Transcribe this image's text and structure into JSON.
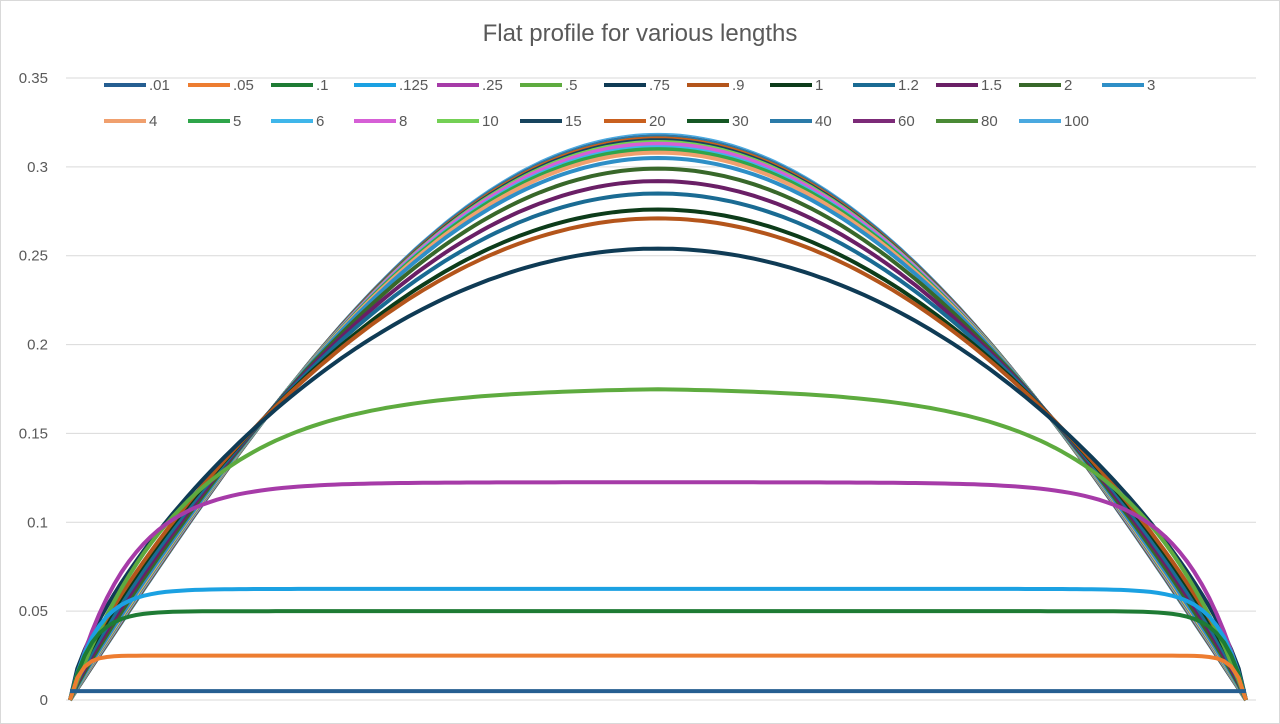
{
  "chart_data": {
    "type": "line",
    "title": "Flat profile for various lengths",
    "xlabel": "",
    "ylabel": "",
    "ylim": [
      0,
      0.35
    ],
    "y_ticks": [
      "0",
      "0.05",
      "0.1",
      "0.15",
      "0.2",
      "0.25",
      "0.3",
      "0.35"
    ],
    "grid": true,
    "legend_position": "top",
    "x_range": [
      0,
      1
    ],
    "series": [
      {
        "name": ".01",
        "color": "#255e91",
        "plateau": 0.005,
        "edge_width": 0.002
      },
      {
        "name": ".05",
        "color": "#ed7d31",
        "plateau": 0.025,
        "edge_width": 0.02
      },
      {
        "name": ".1",
        "color": "#1e7b34",
        "plateau": 0.05,
        "edge_width": 0.04
      },
      {
        "name": ".125",
        "color": "#1ba1e2",
        "plateau": 0.0625,
        "edge_width": 0.05
      },
      {
        "name": ".25",
        "color": "#a63ba8",
        "plateau": 0.1225,
        "edge_width": 0.11
      },
      {
        "name": ".5",
        "color": "#5eab3f",
        "plateau": 0.176,
        "edge_width": 0.22
      },
      {
        "name": ".75",
        "color": "#0f3b55",
        "plateau": 0.254,
        "peak_shape": "sine"
      },
      {
        "name": ".9",
        "color": "#b4551b",
        "plateau": 0.271,
        "peak_shape": "sine"
      },
      {
        "name": "1",
        "color": "#0d3c1a",
        "plateau": 0.276,
        "peak_shape": "sine"
      },
      {
        "name": "1.2",
        "color": "#1a6b93",
        "plateau": 0.285,
        "peak_shape": "sine"
      },
      {
        "name": "1.5",
        "color": "#6a1f66",
        "plateau": 0.292,
        "peak_shape": "sine"
      },
      {
        "name": "2",
        "color": "#38682a",
        "plateau": 0.299,
        "peak_shape": "sine"
      },
      {
        "name": "3",
        "color": "#2e8fc7",
        "plateau": 0.305,
        "peak_shape": "sine"
      },
      {
        "name": "4",
        "color": "#f0a06e",
        "plateau": 0.308,
        "peak_shape": "sine"
      },
      {
        "name": "5",
        "color": "#2fa54a",
        "plateau": 0.31,
        "peak_shape": "sine"
      },
      {
        "name": "6",
        "color": "#3fb6ea",
        "plateau": 0.311,
        "peak_shape": "sine"
      },
      {
        "name": "8",
        "color": "#d65fd6",
        "plateau": 0.313,
        "peak_shape": "sine"
      },
      {
        "name": "10",
        "color": "#74d055",
        "plateau": 0.314,
        "peak_shape": "sine"
      },
      {
        "name": "15",
        "color": "#17445e",
        "plateau": 0.315,
        "peak_shape": "sine"
      },
      {
        "name": "20",
        "color": "#c9601f",
        "plateau": 0.316,
        "peak_shape": "sine"
      },
      {
        "name": "30",
        "color": "#155724",
        "plateau": 0.316,
        "peak_shape": "sine"
      },
      {
        "name": "40",
        "color": "#2a7aa8",
        "plateau": 0.317,
        "peak_shape": "sine"
      },
      {
        "name": "60",
        "color": "#7c2a78",
        "plateau": 0.317,
        "peak_shape": "sine"
      },
      {
        "name": "80",
        "color": "#4a8a35",
        "plateau": 0.317,
        "peak_shape": "sine"
      },
      {
        "name": "100",
        "color": "#4aa9e0",
        "plateau": 0.318,
        "peak_shape": "sine"
      }
    ]
  }
}
